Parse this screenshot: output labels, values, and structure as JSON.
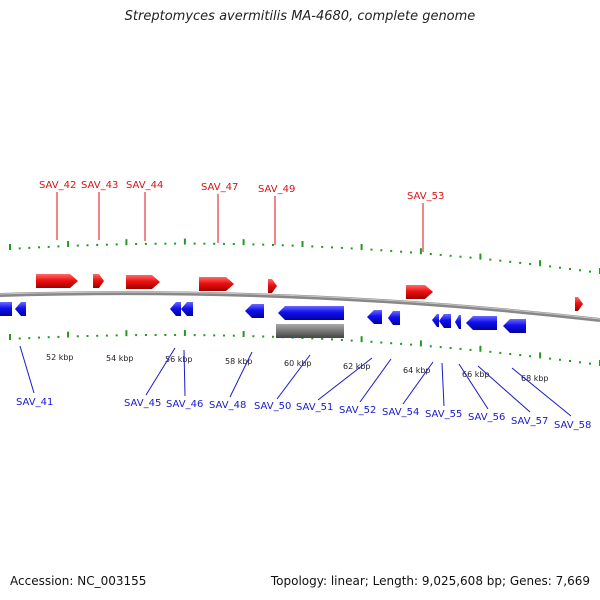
{
  "title": "Streptomyces avermitilis MA-4680, complete genome",
  "footer": {
    "accession": "Accession: NC_003155",
    "summary": "Topology: linear; Length: 9,025,608 bp; Genes: 7,669"
  },
  "colors": {
    "forward": "#ee1111",
    "reverse": "#1111ee",
    "rna": "#777777",
    "ticks": "#229922",
    "backbone": "#888888"
  },
  "kbp_labels": [
    "52 kbp",
    "54 kbp",
    "56 kbp",
    "58 kbp",
    "60 kbp",
    "62 kbp",
    "64 kbp",
    "66 kbp",
    "68 kbp"
  ],
  "top_labels": [
    "SAV_42",
    "SAV_43",
    "SAV_44",
    "SAV_47",
    "SAV_49",
    "SAV_53"
  ],
  "bottom_labels": [
    "SAV_41",
    "SAV_45",
    "SAV_46",
    "SAV_48",
    "SAV_50",
    "SAV_51",
    "SAV_52",
    "SAV_54",
    "SAV_55",
    "SAV_56",
    "SAV_57",
    "SAV_58"
  ]
}
